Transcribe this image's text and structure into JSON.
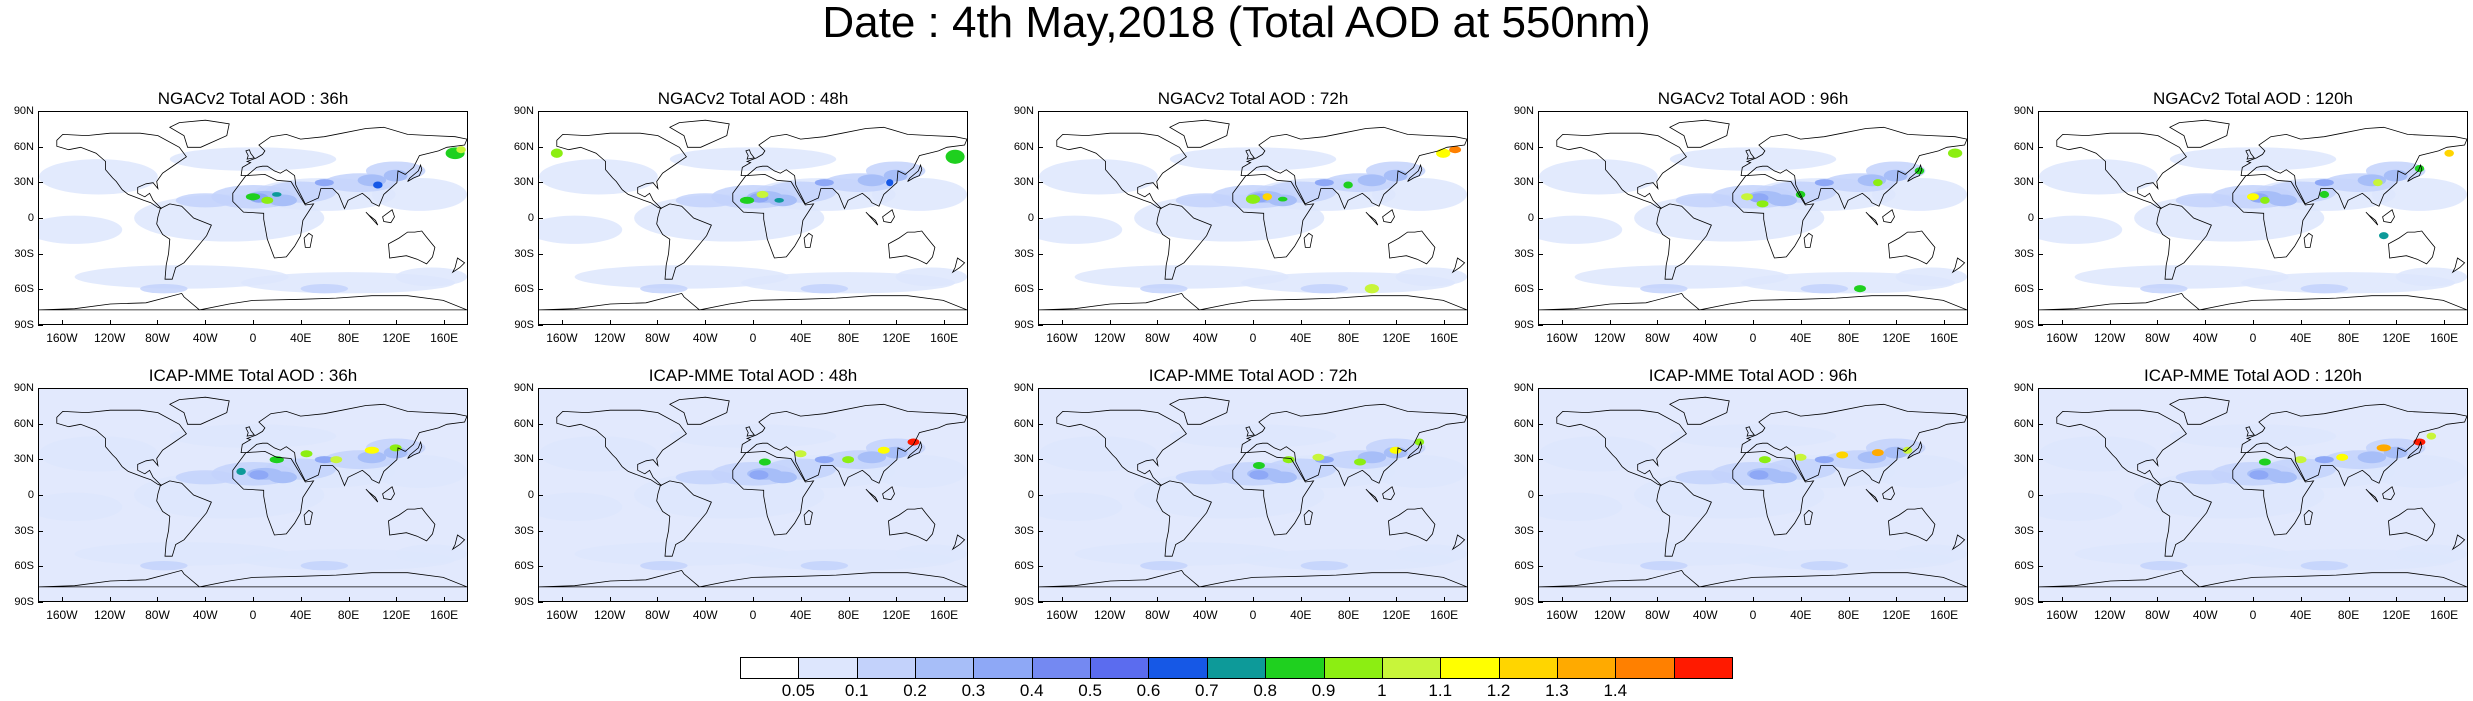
{
  "title": "Date : 4th May,2018 (Total AOD at 550nm)",
  "lat_labels": [
    "90N",
    "60N",
    "30N",
    "0",
    "30S",
    "60S",
    "90S"
  ],
  "lon_labels": [
    "160W",
    "120W",
    "80W",
    "40W",
    "0",
    "40E",
    "80E",
    "120E",
    "160E"
  ],
  "lon_values": [
    -160,
    -120,
    -80,
    -40,
    0,
    40,
    80,
    120,
    160
  ],
  "lat_values": [
    90,
    60,
    30,
    0,
    -30,
    -60,
    -90
  ],
  "panels": [
    {
      "title": "NGACv2 Total AOD : 36h"
    },
    {
      "title": "NGACv2 Total AOD : 48h"
    },
    {
      "title": "NGACv2 Total AOD : 72h"
    },
    {
      "title": "NGACv2 Total AOD : 96h"
    },
    {
      "title": "NGACv2 Total AOD : 120h"
    },
    {
      "title": "ICAP-MME Total AOD : 36h"
    },
    {
      "title": "ICAP-MME Total AOD : 48h"
    },
    {
      "title": "ICAP-MME Total AOD : 72h"
    },
    {
      "title": "ICAP-MME Total AOD : 96h"
    },
    {
      "title": "ICAP-MME Total AOD : 120h"
    }
  ],
  "colorbar": {
    "labels": [
      "0.05",
      "0.1",
      "0.2",
      "0.3",
      "0.4",
      "0.5",
      "0.6",
      "0.7",
      "0.8",
      "0.9",
      "1",
      "1.1",
      "1.2",
      "1.3",
      "1.4"
    ],
    "colors": [
      "#ffffff",
      "#dde6fd",
      "#c3d2fb",
      "#a7bef8",
      "#8ea8f6",
      "#7489f2",
      "#5b6cef",
      "#1658e6",
      "#0d9a99",
      "#1fd01f",
      "#8cee12",
      "#c8f53a",
      "#ffff00",
      "#ffd500",
      "#ffaa00",
      "#ff8000",
      "#ff1a00"
    ]
  }
}
